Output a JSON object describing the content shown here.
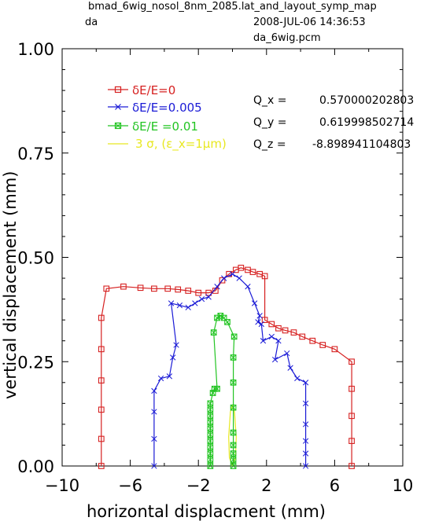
{
  "header": {
    "title_line1": "bmad_6wig_nosol_8nm_2085.lat_and_layout_symp_map",
    "title_line2": "da",
    "date": "2008-JUL-06  14:36:53",
    "file": "da_6wig.pcm"
  },
  "tunes": [
    {
      "label": "Q_x =",
      "value": "0.570000202803"
    },
    {
      "label": "Q_y =",
      "value": "0.619998502714"
    },
    {
      "label": "Q_z =",
      "value": "-8.898941104803"
    }
  ],
  "colors": {
    "red": "#d62020",
    "blue": "#1a1ad6",
    "green": "#22c422",
    "yellow": "#e8e820"
  },
  "chart_data": {
    "type": "line",
    "xlabel": "horizontal displacment (mm)",
    "ylabel": "vertical displacement (mm)",
    "xlim": [
      -10,
      10
    ],
    "ylim": [
      0,
      1
    ],
    "xticks": [
      "−10",
      "−6",
      "−2",
      "2",
      "6",
      "10"
    ],
    "yticks": [
      "0.00",
      "0.25",
      "0.50",
      "0.75",
      "1.00"
    ],
    "series": [
      {
        "name": "δE/E=0",
        "color": "#d62020",
        "marker": "square",
        "points": [
          [
            -7.7,
            0.0
          ],
          [
            -7.7,
            0.065
          ],
          [
            -7.7,
            0.135
          ],
          [
            -7.7,
            0.205
          ],
          [
            -7.7,
            0.28
          ],
          [
            -7.7,
            0.355
          ],
          [
            -7.4,
            0.425
          ],
          [
            -6.4,
            0.43
          ],
          [
            -5.4,
            0.427
          ],
          [
            -4.6,
            0.425
          ],
          [
            -3.8,
            0.425
          ],
          [
            -3.2,
            0.423
          ],
          [
            -2.6,
            0.42
          ],
          [
            -2.0,
            0.415
          ],
          [
            -1.4,
            0.415
          ],
          [
            -1.0,
            0.42
          ],
          [
            -0.6,
            0.445
          ],
          [
            -0.2,
            0.46
          ],
          [
            0.2,
            0.47
          ],
          [
            0.5,
            0.475
          ],
          [
            0.9,
            0.47
          ],
          [
            1.2,
            0.465
          ],
          [
            1.6,
            0.46
          ],
          [
            1.9,
            0.455
          ],
          [
            1.9,
            0.35
          ],
          [
            2.3,
            0.34
          ],
          [
            2.7,
            0.33
          ],
          [
            3.1,
            0.325
          ],
          [
            3.6,
            0.32
          ],
          [
            4.1,
            0.31
          ],
          [
            4.7,
            0.3
          ],
          [
            5.3,
            0.29
          ],
          [
            6.0,
            0.28
          ],
          [
            7.0,
            0.25
          ],
          [
            7.0,
            0.185
          ],
          [
            7.0,
            0.12
          ],
          [
            7.0,
            0.06
          ],
          [
            7.0,
            0.0
          ]
        ]
      },
      {
        "name": "δE/E=0.005",
        "color": "#1a1ad6",
        "marker": "x",
        "points": [
          [
            -4.6,
            0.0
          ],
          [
            -4.6,
            0.065
          ],
          [
            -4.6,
            0.13
          ],
          [
            -4.6,
            0.18
          ],
          [
            -4.2,
            0.21
          ],
          [
            -3.7,
            0.215
          ],
          [
            -3.5,
            0.26
          ],
          [
            -3.3,
            0.29
          ],
          [
            -3.6,
            0.39
          ],
          [
            -3.1,
            0.385
          ],
          [
            -2.6,
            0.38
          ],
          [
            -2.2,
            0.39
          ],
          [
            -1.8,
            0.4
          ],
          [
            -1.4,
            0.405
          ],
          [
            -0.9,
            0.43
          ],
          [
            -0.5,
            0.45
          ],
          [
            0.0,
            0.46
          ],
          [
            0.4,
            0.45
          ],
          [
            0.9,
            0.43
          ],
          [
            1.3,
            0.39
          ],
          [
            1.6,
            0.36
          ],
          [
            1.5,
            0.345
          ],
          [
            1.7,
            0.34
          ],
          [
            1.8,
            0.3
          ],
          [
            2.3,
            0.31
          ],
          [
            2.7,
            0.3
          ],
          [
            2.5,
            0.255
          ],
          [
            3.2,
            0.27
          ],
          [
            3.4,
            0.235
          ],
          [
            3.8,
            0.21
          ],
          [
            4.3,
            0.2
          ],
          [
            4.3,
            0.15
          ],
          [
            4.3,
            0.1
          ],
          [
            4.3,
            0.06
          ],
          [
            4.3,
            0.03
          ],
          [
            4.3,
            0.0
          ]
        ]
      },
      {
        "name": "δE/E =0.01",
        "color": "#22c422",
        "marker": "boxx",
        "points": [
          [
            -1.3,
            0.0
          ],
          [
            -1.3,
            0.015
          ],
          [
            -1.3,
            0.03
          ],
          [
            -1.3,
            0.045
          ],
          [
            -1.3,
            0.06
          ],
          [
            -1.3,
            0.075
          ],
          [
            -1.3,
            0.09
          ],
          [
            -1.3,
            0.105
          ],
          [
            -1.3,
            0.12
          ],
          [
            -1.3,
            0.135
          ],
          [
            -1.3,
            0.15
          ],
          [
            -1.15,
            0.175
          ],
          [
            -1.05,
            0.185
          ],
          [
            -0.9,
            0.185
          ],
          [
            -1.1,
            0.32
          ],
          [
            -0.9,
            0.355
          ],
          [
            -0.7,
            0.36
          ],
          [
            -0.5,
            0.355
          ],
          [
            -0.3,
            0.345
          ],
          [
            0.1,
            0.31
          ],
          [
            0.05,
            0.26
          ],
          [
            0.05,
            0.2
          ],
          [
            0.05,
            0.14
          ],
          [
            0.05,
            0.08
          ],
          [
            0.05,
            0.05
          ],
          [
            0.05,
            0.03
          ],
          [
            0.05,
            0.015
          ],
          [
            0.05,
            0.0
          ]
        ]
      }
    ],
    "yellow_series": {
      "name": "3 σ, (ε_x=1μm)",
      "color": "#e8e820",
      "points": [
        [
          0.0,
          0.0
        ],
        [
          -0.18,
          0.02
        ],
        [
          -0.22,
          0.07
        ],
        [
          -0.12,
          0.13
        ],
        [
          0.0,
          0.145
        ],
        [
          0.12,
          0.13
        ],
        [
          0.22,
          0.07
        ],
        [
          0.18,
          0.02
        ],
        [
          0.0,
          0.0
        ]
      ]
    }
  }
}
